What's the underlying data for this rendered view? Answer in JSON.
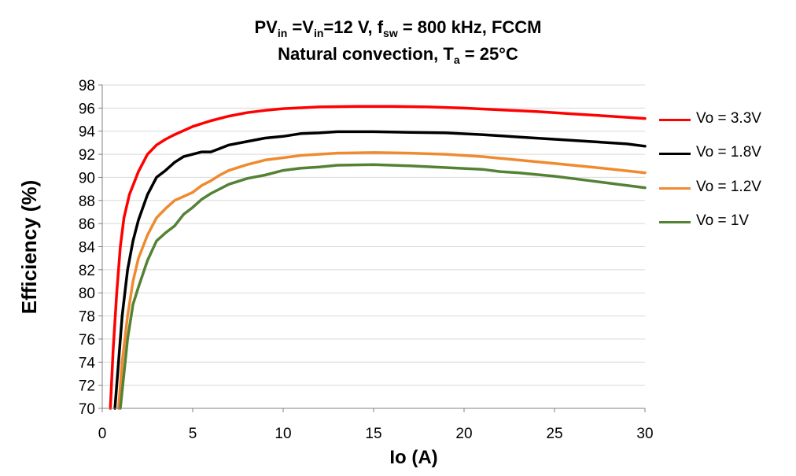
{
  "chart_data": {
    "type": "line",
    "title": {
      "l1_a": "PV",
      "l1_a_sub": "in",
      "l1_b": " =V",
      "l1_b_sub": "in",
      "l1_c": "=12 V, f",
      "l1_c_sub": "sw",
      "l1_d": " = 800 kHz, FCCM",
      "l2_a": "Natural convection, T",
      "l2_a_sub": "a",
      "l2_b": " = 25°C"
    },
    "xlabel": "Io (A)",
    "ylabel": "Efficiency (%)",
    "xlim": [
      0,
      30
    ],
    "ylim": [
      70,
      98
    ],
    "xticks": [
      0,
      5,
      10,
      15,
      20,
      25,
      30
    ],
    "yticks": [
      70,
      72,
      74,
      76,
      78,
      80,
      82,
      84,
      86,
      88,
      90,
      92,
      94,
      96,
      98
    ],
    "grid": "horizontal",
    "legend_position": "right",
    "series": [
      {
        "name": "Vo = 3.3V",
        "color": "#ff0000",
        "points": [
          [
            0.45,
            70
          ],
          [
            0.6,
            75
          ],
          [
            0.8,
            80
          ],
          [
            1.0,
            84
          ],
          [
            1.2,
            86.5
          ],
          [
            1.5,
            88.5
          ],
          [
            2.0,
            90.5
          ],
          [
            2.5,
            92
          ],
          [
            3.0,
            92.8
          ],
          [
            3.5,
            93.3
          ],
          [
            4.0,
            93.7
          ],
          [
            5.0,
            94.4
          ],
          [
            6.0,
            94.9
          ],
          [
            7.0,
            95.3
          ],
          [
            8.0,
            95.6
          ],
          [
            9.0,
            95.8
          ],
          [
            10.0,
            95.95
          ],
          [
            12.0,
            96.1
          ],
          [
            14.0,
            96.15
          ],
          [
            16.0,
            96.15
          ],
          [
            18.0,
            96.1
          ],
          [
            20.0,
            96.0
          ],
          [
            22.0,
            95.85
          ],
          [
            24.0,
            95.7
          ],
          [
            26.0,
            95.5
          ],
          [
            28.0,
            95.3
          ],
          [
            30.0,
            95.1
          ]
        ]
      },
      {
        "name": "Vo = 1.8V",
        "color": "#000000",
        "points": [
          [
            0.7,
            70
          ],
          [
            0.9,
            74
          ],
          [
            1.1,
            78
          ],
          [
            1.4,
            82
          ],
          [
            1.7,
            84.5
          ],
          [
            2.0,
            86.3
          ],
          [
            2.5,
            88.5
          ],
          [
            3.0,
            90.0
          ],
          [
            3.5,
            90.6
          ],
          [
            4.0,
            91.3
          ],
          [
            4.5,
            91.8
          ],
          [
            5.0,
            92.0
          ],
          [
            5.5,
            92.2
          ],
          [
            6.0,
            92.2
          ],
          [
            6.5,
            92.5
          ],
          [
            7.0,
            92.8
          ],
          [
            8.0,
            93.1
          ],
          [
            9.0,
            93.4
          ],
          [
            10.0,
            93.55
          ],
          [
            11.0,
            93.8
          ],
          [
            12.0,
            93.85
          ],
          [
            13.0,
            93.95
          ],
          [
            15.0,
            93.95
          ],
          [
            17.0,
            93.9
          ],
          [
            19.0,
            93.85
          ],
          [
            21.0,
            93.7
          ],
          [
            23.0,
            93.5
          ],
          [
            25.0,
            93.3
          ],
          [
            27.0,
            93.1
          ],
          [
            29.0,
            92.9
          ],
          [
            30.0,
            92.7
          ]
        ]
      },
      {
        "name": "Vo = 1.2V",
        "color": "#f08a30",
        "points": [
          [
            0.9,
            70
          ],
          [
            1.1,
            74
          ],
          [
            1.4,
            78
          ],
          [
            1.7,
            81
          ],
          [
            2.0,
            83
          ],
          [
            2.5,
            85
          ],
          [
            3.0,
            86.5
          ],
          [
            3.5,
            87.3
          ],
          [
            4.0,
            88.0
          ],
          [
            5.0,
            88.7
          ],
          [
            5.5,
            89.3
          ],
          [
            6.0,
            89.7
          ],
          [
            6.5,
            90.2
          ],
          [
            7.0,
            90.6
          ],
          [
            8.0,
            91.1
          ],
          [
            9.0,
            91.5
          ],
          [
            10.0,
            91.7
          ],
          [
            11.0,
            91.9
          ],
          [
            13.0,
            92.1
          ],
          [
            15.0,
            92.15
          ],
          [
            17.0,
            92.1
          ],
          [
            19.0,
            92.0
          ],
          [
            21.0,
            91.8
          ],
          [
            23.0,
            91.5
          ],
          [
            25.0,
            91.2
          ],
          [
            27.0,
            90.9
          ],
          [
            30.0,
            90.4
          ]
        ]
      },
      {
        "name": "Vo = 1V",
        "color": "#548235",
        "points": [
          [
            1.0,
            70
          ],
          [
            1.2,
            73
          ],
          [
            1.4,
            76
          ],
          [
            1.7,
            79
          ],
          [
            2.0,
            80.5
          ],
          [
            2.5,
            82.8
          ],
          [
            3.0,
            84.5
          ],
          [
            3.5,
            85.2
          ],
          [
            4.0,
            85.8
          ],
          [
            4.5,
            86.8
          ],
          [
            5.0,
            87.4
          ],
          [
            5.5,
            88.1
          ],
          [
            6.0,
            88.6
          ],
          [
            7.0,
            89.4
          ],
          [
            8.0,
            89.9
          ],
          [
            9.0,
            90.2
          ],
          [
            10.0,
            90.6
          ],
          [
            11.0,
            90.8
          ],
          [
            12.0,
            90.9
          ],
          [
            13.0,
            91.05
          ],
          [
            15.0,
            91.1
          ],
          [
            17.0,
            91.0
          ],
          [
            19.0,
            90.85
          ],
          [
            21.0,
            90.7
          ],
          [
            22.0,
            90.5
          ],
          [
            23.0,
            90.4
          ],
          [
            25.0,
            90.1
          ],
          [
            27.0,
            89.7
          ],
          [
            30.0,
            89.1
          ]
        ]
      }
    ]
  }
}
